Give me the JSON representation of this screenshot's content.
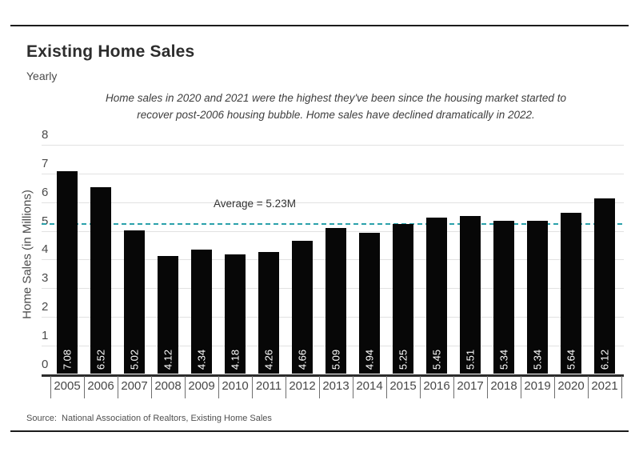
{
  "header": {
    "title": "Existing Home Sales",
    "subtitle": "Yearly",
    "annotation_lines": [
      "Home sales in 2020 and 2021 were the highest they've been since the housing market started to",
      "recover post-2006 housing bubble. Home sales have declined dramatically in 2022."
    ]
  },
  "chart_data": {
    "type": "bar",
    "title": "Existing Home Sales",
    "subtitle": "Yearly",
    "categories": [
      "2005",
      "2006",
      "2007",
      "2008",
      "2009",
      "2010",
      "2011",
      "2012",
      "2013",
      "2014",
      "2015",
      "2016",
      "2017",
      "2018",
      "2019",
      "2020",
      "2021"
    ],
    "values": [
      7.08,
      6.52,
      5.02,
      4.12,
      4.34,
      4.18,
      4.26,
      4.66,
      5.09,
      4.94,
      5.25,
      5.45,
      5.51,
      5.34,
      5.34,
      5.64,
      6.12
    ],
    "xlabel": "",
    "ylabel": "Home Sales (in Millions)",
    "ylim": [
      0,
      8
    ],
    "ytick_interval": 1,
    "grid": true,
    "bar_color": "#070707",
    "average_line": {
      "value": 5.23,
      "label": "Average = 5.23M",
      "color": "#2ba1ab",
      "style": "dashed"
    }
  },
  "source": {
    "label": "Source:  National Association of Realtors, Existing Home Sales"
  },
  "colors": {
    "accent_teal": "#2ba1ab",
    "bar": "#070707",
    "rule": "#1b1b1b",
    "gridline": "#e2e2e2",
    "text_dark": "#2d2d2d",
    "text_gray": "#4a4a4a"
  }
}
